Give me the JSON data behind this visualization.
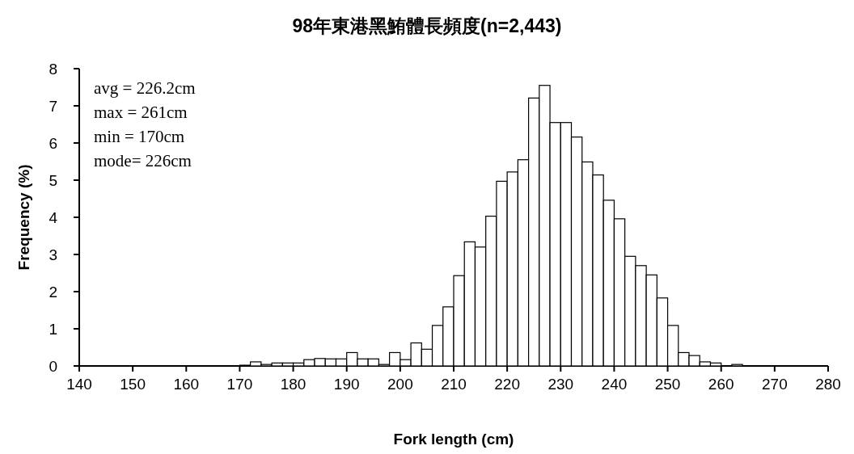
{
  "chart_data": {
    "type": "histogram",
    "title": "98年東港黑鮪體長頻度(n=2,443)",
    "xlabel": "Fork length (cm)",
    "ylabel": "Frequency (%)",
    "annotations": [
      "avg = 226.2cm",
      "max = 261cm",
      "min = 170cm",
      "mode= 226cm"
    ],
    "bins": [
      170,
      172,
      174,
      176,
      178,
      180,
      182,
      184,
      186,
      188,
      190,
      192,
      194,
      196,
      198,
      200,
      202,
      204,
      206,
      208,
      210,
      212,
      214,
      216,
      218,
      220,
      222,
      224,
      226,
      228,
      230,
      232,
      234,
      236,
      238,
      240,
      242,
      244,
      246,
      248,
      250,
      252,
      254,
      256,
      258,
      260,
      262,
      264
    ],
    "values": [
      0.02,
      0.11,
      0.04,
      0.08,
      0.08,
      0.08,
      0.17,
      0.2,
      0.19,
      0.19,
      0.36,
      0.19,
      0.19,
      0.04,
      0.36,
      0.17,
      0.62,
      0.45,
      1.09,
      1.59,
      2.43,
      3.34,
      3.2,
      4.03,
      4.97,
      5.22,
      5.55,
      7.21,
      7.55,
      6.55,
      6.55,
      6.16,
      5.49,
      5.14,
      4.46,
      3.96,
      2.95,
      2.7,
      2.45,
      1.83,
      1.09,
      0.36,
      0.28,
      0.11,
      0.08,
      0,
      0.04
    ],
    "color": "#ffffff",
    "xlim": [
      140,
      280
    ],
    "xticks": [
      140,
      150,
      160,
      170,
      180,
      190,
      200,
      210,
      220,
      230,
      240,
      250,
      260,
      270,
      280
    ],
    "ylim": [
      0,
      8
    ],
    "yticks": [
      0,
      1,
      2,
      3,
      4,
      5,
      6,
      7,
      8
    ]
  }
}
